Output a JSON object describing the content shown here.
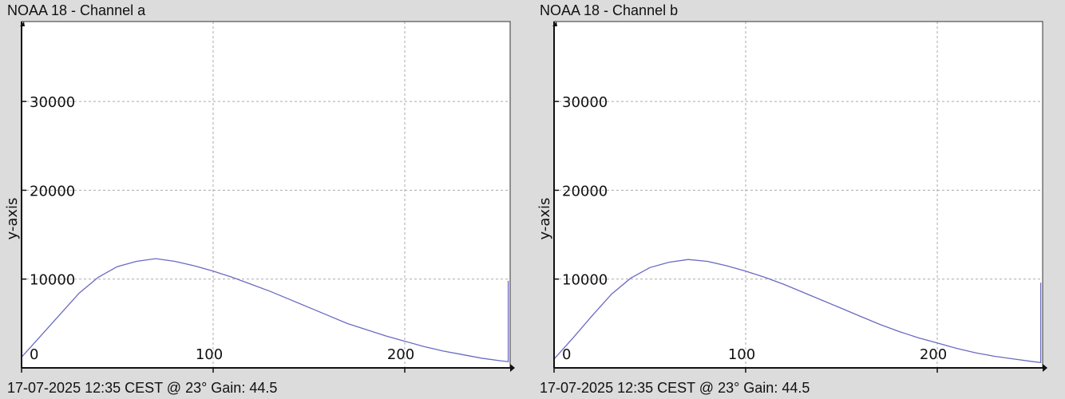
{
  "chart_data": [
    {
      "type": "line",
      "title": "NOAA 18 - Channel a",
      "footer": "17-07-2025 12:35 CEST @ 23° Gain: 44.5",
      "ylabel": "y-axis",
      "xlim": [
        0,
        255
      ],
      "ylim": [
        0,
        39000
      ],
      "x_ticks": [
        0,
        100,
        200
      ],
      "y_ticks": [
        10000,
        20000,
        30000
      ],
      "grid": true,
      "line_color": "#6a6ac4",
      "series": [
        {
          "x": [
            0,
            10,
            20,
            30,
            40,
            50,
            60,
            70,
            80,
            90,
            100,
            110,
            120,
            130,
            140,
            150,
            160,
            170,
            180,
            190,
            200,
            210,
            220,
            230,
            240,
            250,
            254,
            254
          ],
          "values": [
            1200,
            3600,
            6000,
            8400,
            10200,
            11400,
            12000,
            12300,
            12000,
            11500,
            10900,
            10200,
            9400,
            8600,
            7700,
            6800,
            5900,
            5000,
            4300,
            3600,
            3000,
            2400,
            1900,
            1500,
            1100,
            800,
            700,
            9800
          ]
        }
      ]
    },
    {
      "type": "line",
      "title": "NOAA 18 - Channel b",
      "footer": "17-07-2025 12:35 CEST @ 23° Gain: 44.5",
      "ylabel": "y-axis",
      "xlim": [
        0,
        255
      ],
      "ylim": [
        0,
        39000
      ],
      "x_ticks": [
        0,
        100,
        200
      ],
      "y_ticks": [
        10000,
        20000,
        30000
      ],
      "grid": true,
      "line_color": "#6a6ac4",
      "series": [
        {
          "x": [
            0,
            10,
            20,
            30,
            40,
            50,
            60,
            70,
            80,
            90,
            100,
            110,
            120,
            130,
            140,
            150,
            160,
            170,
            180,
            190,
            200,
            210,
            220,
            230,
            240,
            250,
            254,
            254
          ],
          "values": [
            1000,
            3400,
            5900,
            8300,
            10100,
            11300,
            11900,
            12200,
            12000,
            11500,
            10900,
            10200,
            9400,
            8500,
            7600,
            6700,
            5800,
            4900,
            4100,
            3400,
            2800,
            2200,
            1700,
            1300,
            1000,
            700,
            600,
            9600
          ]
        }
      ]
    }
  ]
}
